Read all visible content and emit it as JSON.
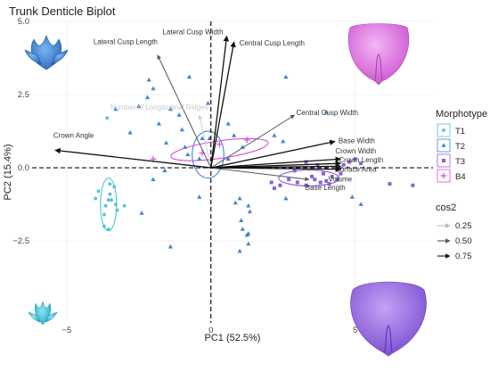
{
  "chart_data": {
    "type": "scatter",
    "title": "Trunk Denticle Biplot",
    "xlabel": "PC1 (52.5%)",
    "ylabel": "PC2 (15.4%)",
    "xlim": [
      -6.2,
      7.7
    ],
    "ylim": [
      -5.3,
      5.0
    ],
    "xticks": [
      -5,
      0,
      5
    ],
    "yticks": [
      -2.5,
      0.0,
      2.5,
      5.0
    ],
    "xtick_labels": [
      "−5",
      "0",
      "5"
    ],
    "ytick_labels": [
      "−2.5",
      "0.0",
      "2.5",
      "5.0"
    ],
    "grid": true,
    "zero_lines": "dashed",
    "legend_morphotype": {
      "title": "Morphotype",
      "entries": [
        {
          "name": "T1",
          "color": "#4dc3d6",
          "marker": "circle"
        },
        {
          "name": "T2",
          "color": "#3f84d0",
          "marker": "triangle"
        },
        {
          "name": "T3",
          "color": "#8b5fd8",
          "marker": "square"
        },
        {
          "name": "B4",
          "color": "#d84fd8",
          "marker": "plus"
        }
      ]
    },
    "legend_cos2": {
      "title": "cos2",
      "entries": [
        {
          "label": "0.25",
          "color": "#b8b8b8"
        },
        {
          "label": "0.50",
          "color": "#555555"
        },
        {
          "label": "0.75",
          "color": "#111111"
        }
      ]
    },
    "loadings": [
      {
        "label": "Lateral Cusp Width",
        "x": 0.55,
        "y": 4.5,
        "cos2": 0.78
      },
      {
        "label": "Central Cusp Length",
        "x": 0.8,
        "y": 4.3,
        "cos2": 0.78
      },
      {
        "label": "Lateral Cusp Length",
        "x": -1.85,
        "y": 3.85,
        "cos2": 0.7
      },
      {
        "label": "Central Cusp Width",
        "x": 2.9,
        "y": 1.8,
        "cos2": 0.5
      },
      {
        "label": "Base Width",
        "x": 4.3,
        "y": 0.9,
        "cos2": 0.8
      },
      {
        "label": "Crown Angle",
        "x": -5.4,
        "y": 0.6,
        "cos2": 0.78
      },
      {
        "label": "Crown Width",
        "x": 4.5,
        "y": 0.3,
        "cos2": 0.9
      },
      {
        "label": "Crown Length",
        "x": 4.5,
        "y": 0.15,
        "cos2": 0.9
      },
      {
        "label": "Surface Area",
        "x": 4.5,
        "y": 0.05,
        "cos2": 0.9
      },
      {
        "label": "Volume",
        "x": 4.5,
        "y": -0.05,
        "cos2": 0.9
      },
      {
        "label": "Base Length",
        "x": 3.4,
        "y": -0.4,
        "cos2": 0.5
      },
      {
        "label": "Number of Longitudinal Ridges",
        "x": -0.4,
        "y": 1.8,
        "cos2": 0.08
      }
    ],
    "series": [
      {
        "name": "T1",
        "points": [
          [
            -3.6,
            1.7
          ],
          [
            -3.9,
            -0.8
          ],
          [
            -3.55,
            -1.1
          ],
          [
            -3.65,
            -1.3
          ],
          [
            -3.45,
            -1.1
          ],
          [
            -3.5,
            -0.9
          ],
          [
            -3.3,
            -1.25
          ],
          [
            -3.7,
            -1.6
          ],
          [
            -3.35,
            -0.65
          ],
          [
            -3.25,
            -1.45
          ],
          [
            -3.0,
            -1.3
          ],
          [
            -4.0,
            -1.05
          ],
          [
            -3.55,
            -2.1
          ],
          [
            -3.7,
            -2.0
          ],
          [
            -3.5,
            -0.55
          ]
        ]
      },
      {
        "name": "T2",
        "points": [
          [
            -3.3,
            2.0
          ],
          [
            -2.8,
            1.2
          ],
          [
            -2.4,
            -1.55
          ],
          [
            -2.5,
            2.1
          ],
          [
            -2.2,
            2.4
          ],
          [
            -2.15,
            3.0
          ],
          [
            -2.0,
            -0.4
          ],
          [
            -2.0,
            2.7
          ],
          [
            -1.8,
            1.5
          ],
          [
            -1.6,
            -0.1
          ],
          [
            -1.55,
            0.85
          ],
          [
            -1.4,
            2.0
          ],
          [
            -1.4,
            -2.7
          ],
          [
            -1.1,
            1.8
          ],
          [
            -1.0,
            1.3
          ],
          [
            -0.9,
            0.7
          ],
          [
            -0.75,
            3.1
          ],
          [
            -0.8,
            0.45
          ],
          [
            -0.4,
            0.3
          ],
          [
            -0.3,
            1.0
          ],
          [
            -0.4,
            -1.0
          ],
          [
            -0.1,
            2.2
          ],
          [
            -0.05,
            1.0
          ],
          [
            0.6,
            0.3
          ],
          [
            0.6,
            1.5
          ],
          [
            0.8,
            1.1
          ],
          [
            1.1,
            0.7
          ],
          [
            1.3,
            -1.3
          ],
          [
            1.35,
            -1.5
          ],
          [
            1.1,
            -2.1
          ],
          [
            1.25,
            -2.3
          ],
          [
            1.05,
            -1.8
          ],
          [
            1.3,
            -2.6
          ],
          [
            1.0,
            -2.85
          ],
          [
            1.3,
            -2.25
          ],
          [
            2.2,
            1.1
          ],
          [
            2.5,
            0.9
          ],
          [
            2.6,
            3.1
          ],
          [
            2.6,
            -1.05
          ],
          [
            1.0,
            -1.05
          ],
          [
            4.0,
            1.9
          ],
          [
            4.9,
            -1.0
          ],
          [
            5.2,
            -1.25
          ],
          [
            0.85,
            -1.2
          ]
        ]
      },
      {
        "name": "T3",
        "points": [
          [
            2.1,
            -0.5
          ],
          [
            2.4,
            -0.6
          ],
          [
            2.7,
            -0.4
          ],
          [
            3.0,
            -0.5
          ],
          [
            3.3,
            -0.6
          ],
          [
            3.6,
            -0.4
          ],
          [
            3.8,
            -0.5
          ],
          [
            4.0,
            -0.45
          ],
          [
            4.1,
            -0.55
          ],
          [
            4.2,
            -0.3
          ],
          [
            4.4,
            -0.4
          ],
          [
            4.6,
            0.1
          ],
          [
            4.8,
            0.2
          ],
          [
            5.0,
            0.3
          ],
          [
            5.2,
            0.15
          ],
          [
            3.9,
            -0.2
          ],
          [
            3.5,
            -0.3
          ],
          [
            2.9,
            -0.1
          ],
          [
            3.3,
            0.2
          ],
          [
            4.5,
            -0.2
          ],
          [
            4.0,
            0.0
          ],
          [
            3.7,
            0.1
          ],
          [
            6.2,
            -0.55
          ],
          [
            7.0,
            -0.6
          ],
          [
            2.2,
            -0.7
          ]
        ]
      },
      {
        "name": "B4",
        "points": [
          [
            1.25,
            0.95
          ],
          [
            -2.0,
            0.3
          ],
          [
            -0.3,
            0.5
          ],
          [
            0.3,
            0.8
          ]
        ]
      }
    ],
    "ellipses": [
      {
        "name": "T1",
        "cx": -3.55,
        "cy": -1.25,
        "rx": 0.28,
        "ry": 0.9,
        "angle": 0
      },
      {
        "name": "T2",
        "cx": -0.1,
        "cy": 0.45,
        "rx": 0.55,
        "ry": 0.8,
        "angle": 0
      },
      {
        "name": "T3",
        "cx": 3.4,
        "cy": -0.35,
        "rx": 1.05,
        "ry": 0.27,
        "angle": 0
      },
      {
        "name": "B4",
        "cx": 0.3,
        "cy": 0.62,
        "rx": 1.7,
        "ry": 0.3,
        "angle": 8
      }
    ],
    "specimen_images": [
      {
        "position": "top-left",
        "color": "#3f84d0",
        "depicts": "denticle-3d-model"
      },
      {
        "position": "top-right",
        "color": "#d84fd8",
        "depicts": "denticle-3d-model"
      },
      {
        "position": "bottom-left",
        "color": "#4dc3d6",
        "depicts": "denticle-3d-model"
      },
      {
        "position": "bottom-right",
        "color": "#8b5fd8",
        "depicts": "denticle-3d-model"
      }
    ]
  }
}
